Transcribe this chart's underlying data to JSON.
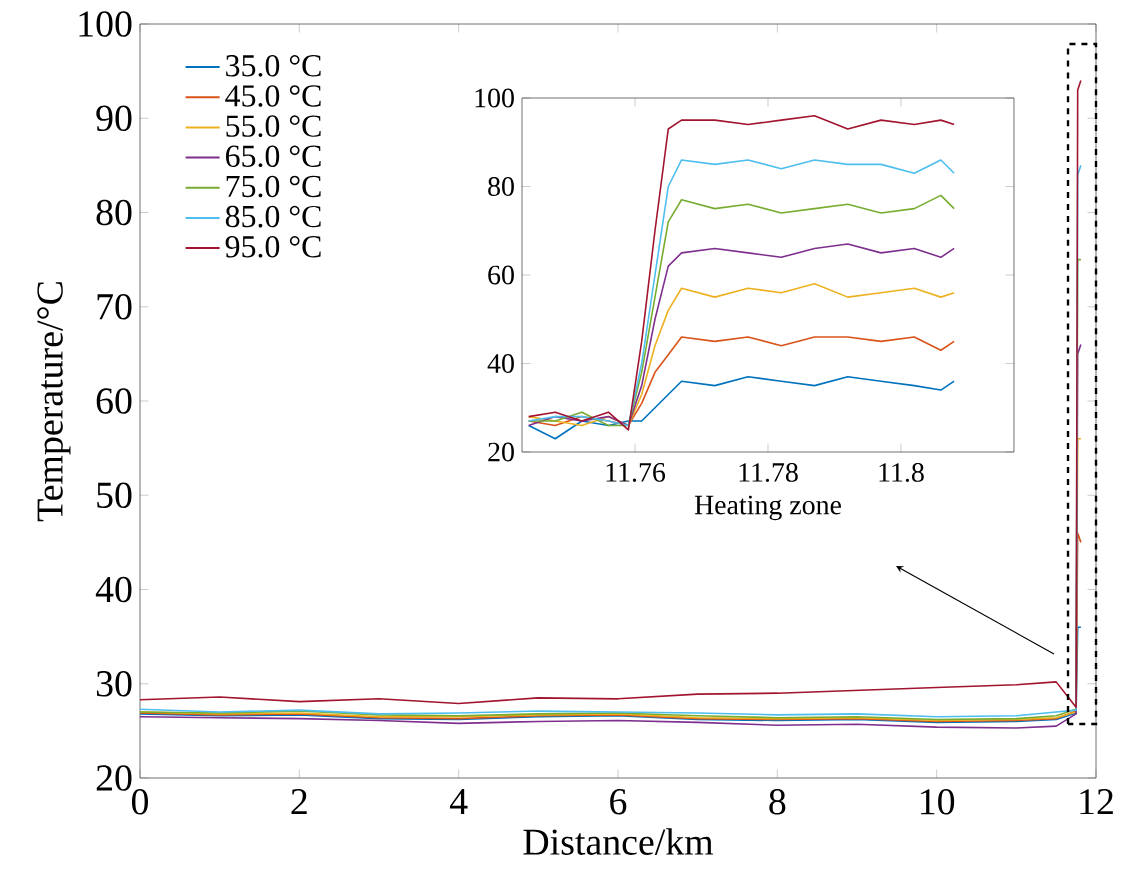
{
  "chart_data": [
    {
      "type": "line",
      "xlabel": "Distance/km",
      "ylabel": "Temperature/°C",
      "xlim": [
        0,
        12
      ],
      "ylim": [
        20,
        100
      ],
      "xticks": [
        0,
        2,
        4,
        6,
        8,
        10,
        12
      ],
      "yticks": [
        20,
        30,
        40,
        50,
        60,
        70,
        80,
        90,
        100
      ],
      "legend": "top left",
      "grid": false,
      "marker": "none",
      "line_style": "solid",
      "x": [
        0,
        1,
        2,
        3,
        4,
        5,
        6,
        7,
        8,
        9,
        10,
        11,
        11.5,
        11.75,
        11.77,
        11.81
      ],
      "series": [
        {
          "name": "35.0 °C",
          "color": "#0072bd",
          "values": [
            26.8,
            26.6,
            26.7,
            26.3,
            26.2,
            26.5,
            26.6,
            26.2,
            26.1,
            26.2,
            25.9,
            26.0,
            26.2,
            26.9,
            36,
            36
          ]
        },
        {
          "name": "45.0 °C",
          "color": "#d95319",
          "values": [
            26.9,
            26.7,
            26.8,
            26.4,
            26.3,
            26.6,
            26.7,
            26.3,
            26.2,
            26.3,
            26.0,
            26.1,
            26.3,
            27.1,
            46,
            45
          ]
        },
        {
          "name": "55.0 °C",
          "color": "#edb120",
          "values": [
            27.0,
            26.8,
            26.9,
            26.5,
            26.5,
            26.7,
            26.8,
            26.4,
            26.3,
            26.4,
            26.1,
            26.2,
            26.4,
            27.0,
            56,
            56
          ]
        },
        {
          "name": "65.0 °C",
          "color": "#7e2f8e",
          "values": [
            26.5,
            26.4,
            26.3,
            26.1,
            25.8,
            26.0,
            26.1,
            25.9,
            25.6,
            25.7,
            25.4,
            25.3,
            25.5,
            26.8,
            65,
            66
          ]
        },
        {
          "name": "75.0 °C",
          "color": "#77ac30",
          "values": [
            27.0,
            26.9,
            27.1,
            26.7,
            26.6,
            26.8,
            26.9,
            26.6,
            26.4,
            26.5,
            26.2,
            26.3,
            26.6,
            27.3,
            75,
            75
          ]
        },
        {
          "name": "85.0 °C",
          "color": "#4dbeee",
          "values": [
            27.3,
            27.0,
            27.2,
            26.8,
            26.9,
            27.1,
            27.0,
            26.9,
            26.7,
            26.8,
            26.5,
            26.6,
            27.0,
            27.2,
            84,
            85
          ]
        },
        {
          "name": "95.0 °C",
          "color": "#a2142f",
          "values": [
            28.3,
            28.6,
            28.1,
            28.4,
            27.9,
            28.5,
            28.4,
            28.9,
            29.0,
            29.3,
            29.6,
            29.9,
            30.2,
            27.5,
            93,
            94
          ]
        }
      ]
    },
    {
      "type": "line",
      "xlabel": "Heating zone",
      "xlim": [
        11.743,
        11.817
      ],
      "ylim": [
        20,
        100
      ],
      "xticks": [
        11.76,
        11.78,
        11.8
      ],
      "yticks": [
        20,
        40,
        60,
        80,
        100
      ],
      "legend": false,
      "grid": false,
      "marker": "none",
      "line_style": "solid",
      "x": [
        11.744,
        11.748,
        11.752,
        11.756,
        11.759,
        11.761,
        11.763,
        11.765,
        11.767,
        11.772,
        11.777,
        11.782,
        11.787,
        11.792,
        11.797,
        11.802,
        11.806,
        11.808
      ],
      "series": [
        {
          "color": "#0072bd",
          "values": [
            26,
            23,
            27,
            26,
            27,
            27,
            30,
            33,
            36,
            35,
            37,
            36,
            35,
            37,
            36,
            35,
            34,
            36
          ]
        },
        {
          "color": "#d95319",
          "values": [
            27,
            26,
            28,
            27,
            26,
            31,
            38,
            42,
            46,
            45,
            46,
            44,
            46,
            46,
            45,
            46,
            43,
            45
          ]
        },
        {
          "color": "#edb120",
          "values": [
            28,
            27,
            26,
            28,
            26,
            33,
            44,
            52,
            57,
            55,
            57,
            56,
            58,
            55,
            56,
            57,
            55,
            56
          ]
        },
        {
          "color": "#7e2f8e",
          "values": [
            26,
            28,
            27,
            28,
            26,
            35,
            50,
            62,
            65,
            66,
            65,
            64,
            66,
            67,
            65,
            66,
            64,
            66
          ]
        },
        {
          "color": "#77ac30",
          "values": [
            27,
            27,
            29,
            26,
            26,
            38,
            55,
            72,
            77,
            75,
            76,
            74,
            75,
            76,
            74,
            75,
            78,
            75
          ]
        },
        {
          "color": "#4dbeee",
          "values": [
            27,
            28,
            28,
            27,
            26,
            40,
            60,
            80,
            86,
            85,
            86,
            84,
            86,
            85,
            85,
            83,
            86,
            83
          ]
        },
        {
          "color": "#a2142f",
          "values": [
            28,
            29,
            27,
            29,
            25,
            45,
            70,
            93,
            95,
            95,
            94,
            95,
            96,
            93,
            95,
            94,
            95,
            94
          ]
        }
      ]
    }
  ]
}
